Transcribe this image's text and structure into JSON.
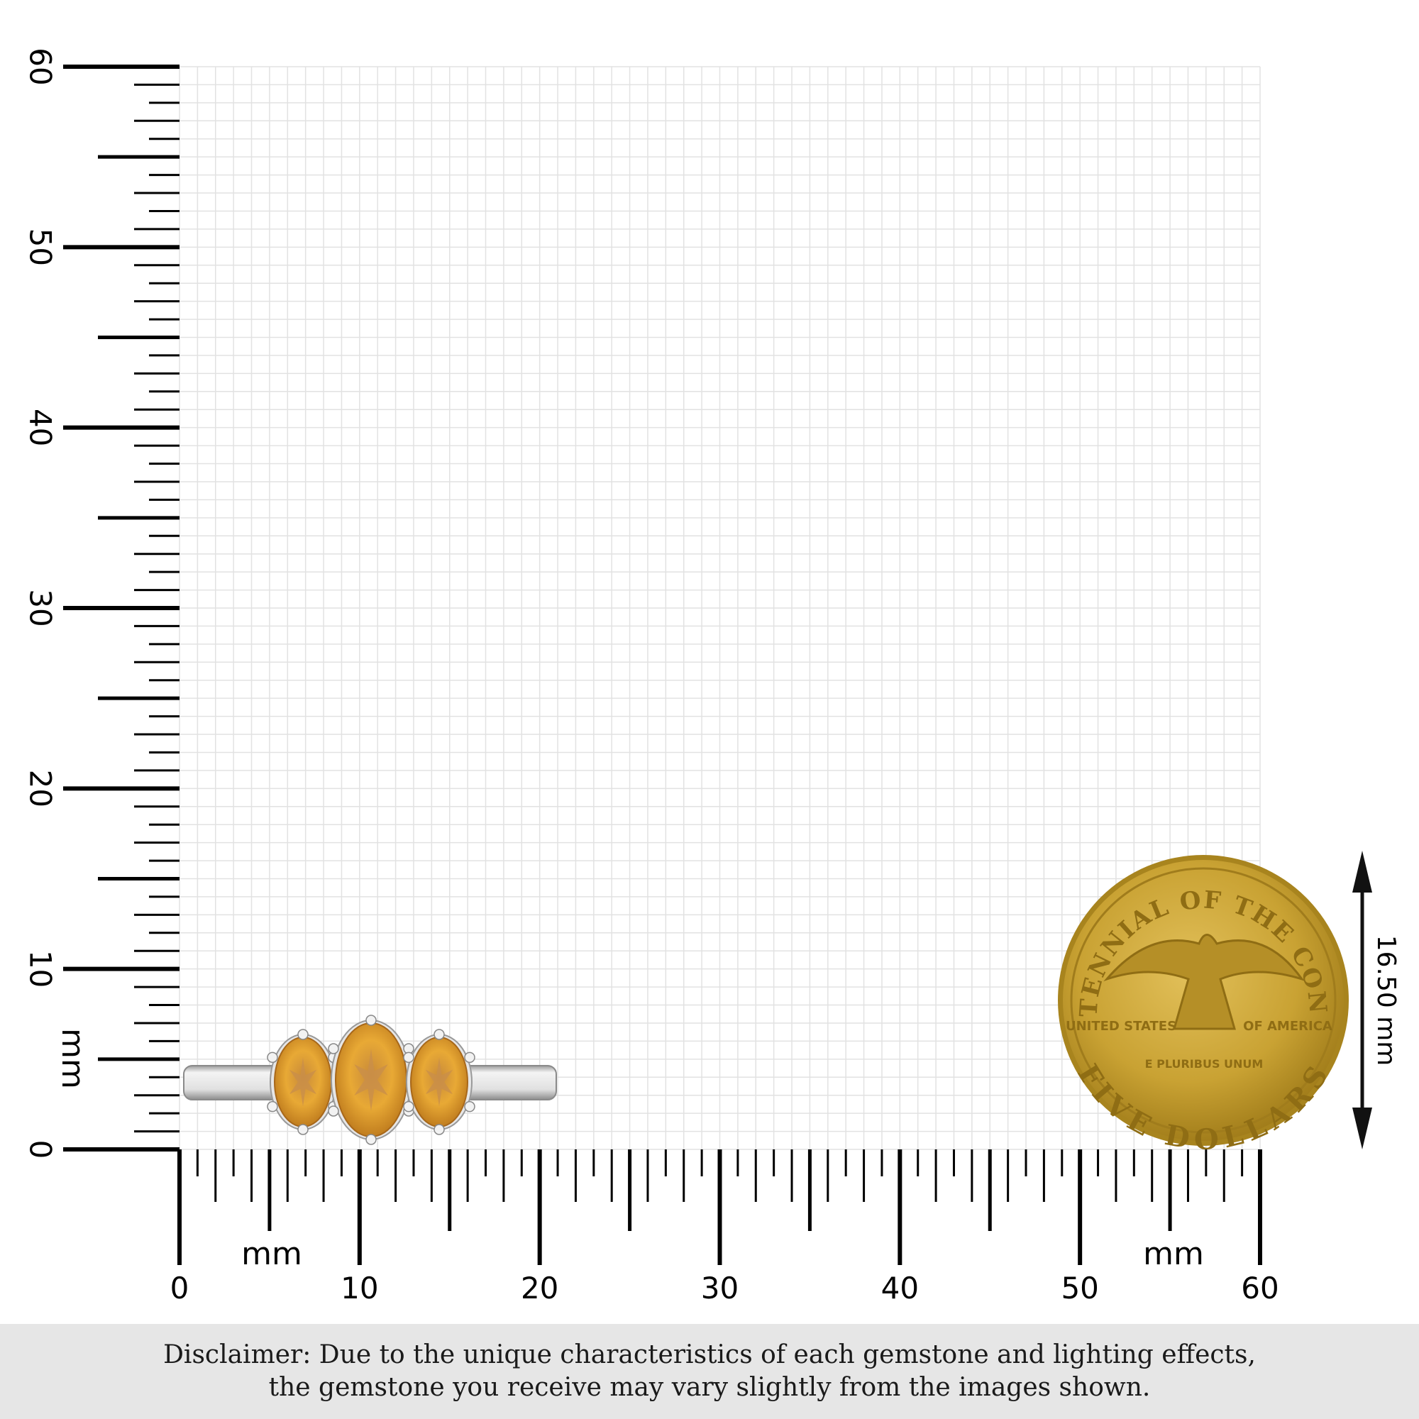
{
  "ruler": {
    "unit_label": "mm",
    "max_mm": 60,
    "major_labels": [
      "0",
      "10",
      "20",
      "30",
      "40",
      "50",
      "60"
    ],
    "grid_color": "#e2e2e2",
    "tick_color": "#000000"
  },
  "coin": {
    "top_text": "BICENTENNIAL",
    "of_the": "OF THE",
    "top_text_right": "CONGRESS",
    "left_text": "UNITED STATES",
    "right_text": "OF AMERICA",
    "motto": "E PLURIBUS UNUM",
    "denomination": "FIVE DOLLARS",
    "color": "#c9a233"
  },
  "dimension": {
    "label": "16.50 mm"
  },
  "ring": {
    "stone_color": "#d99a2b",
    "metal_color": "#d8d8d8",
    "stone_count": 3
  },
  "disclaimer": {
    "line1": "Disclaimer: Due to the unique characteristics of each gemstone and lighting effects,",
    "line2": "the gemstone you receive may vary slightly from the images shown."
  }
}
